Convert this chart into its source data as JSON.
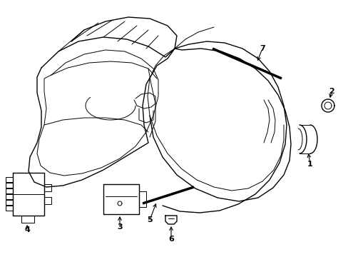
{
  "bg_color": "#ffffff",
  "line_color": "#000000",
  "lw": 1.0,
  "figsize": [
    4.89,
    3.6
  ],
  "dpi": 100
}
